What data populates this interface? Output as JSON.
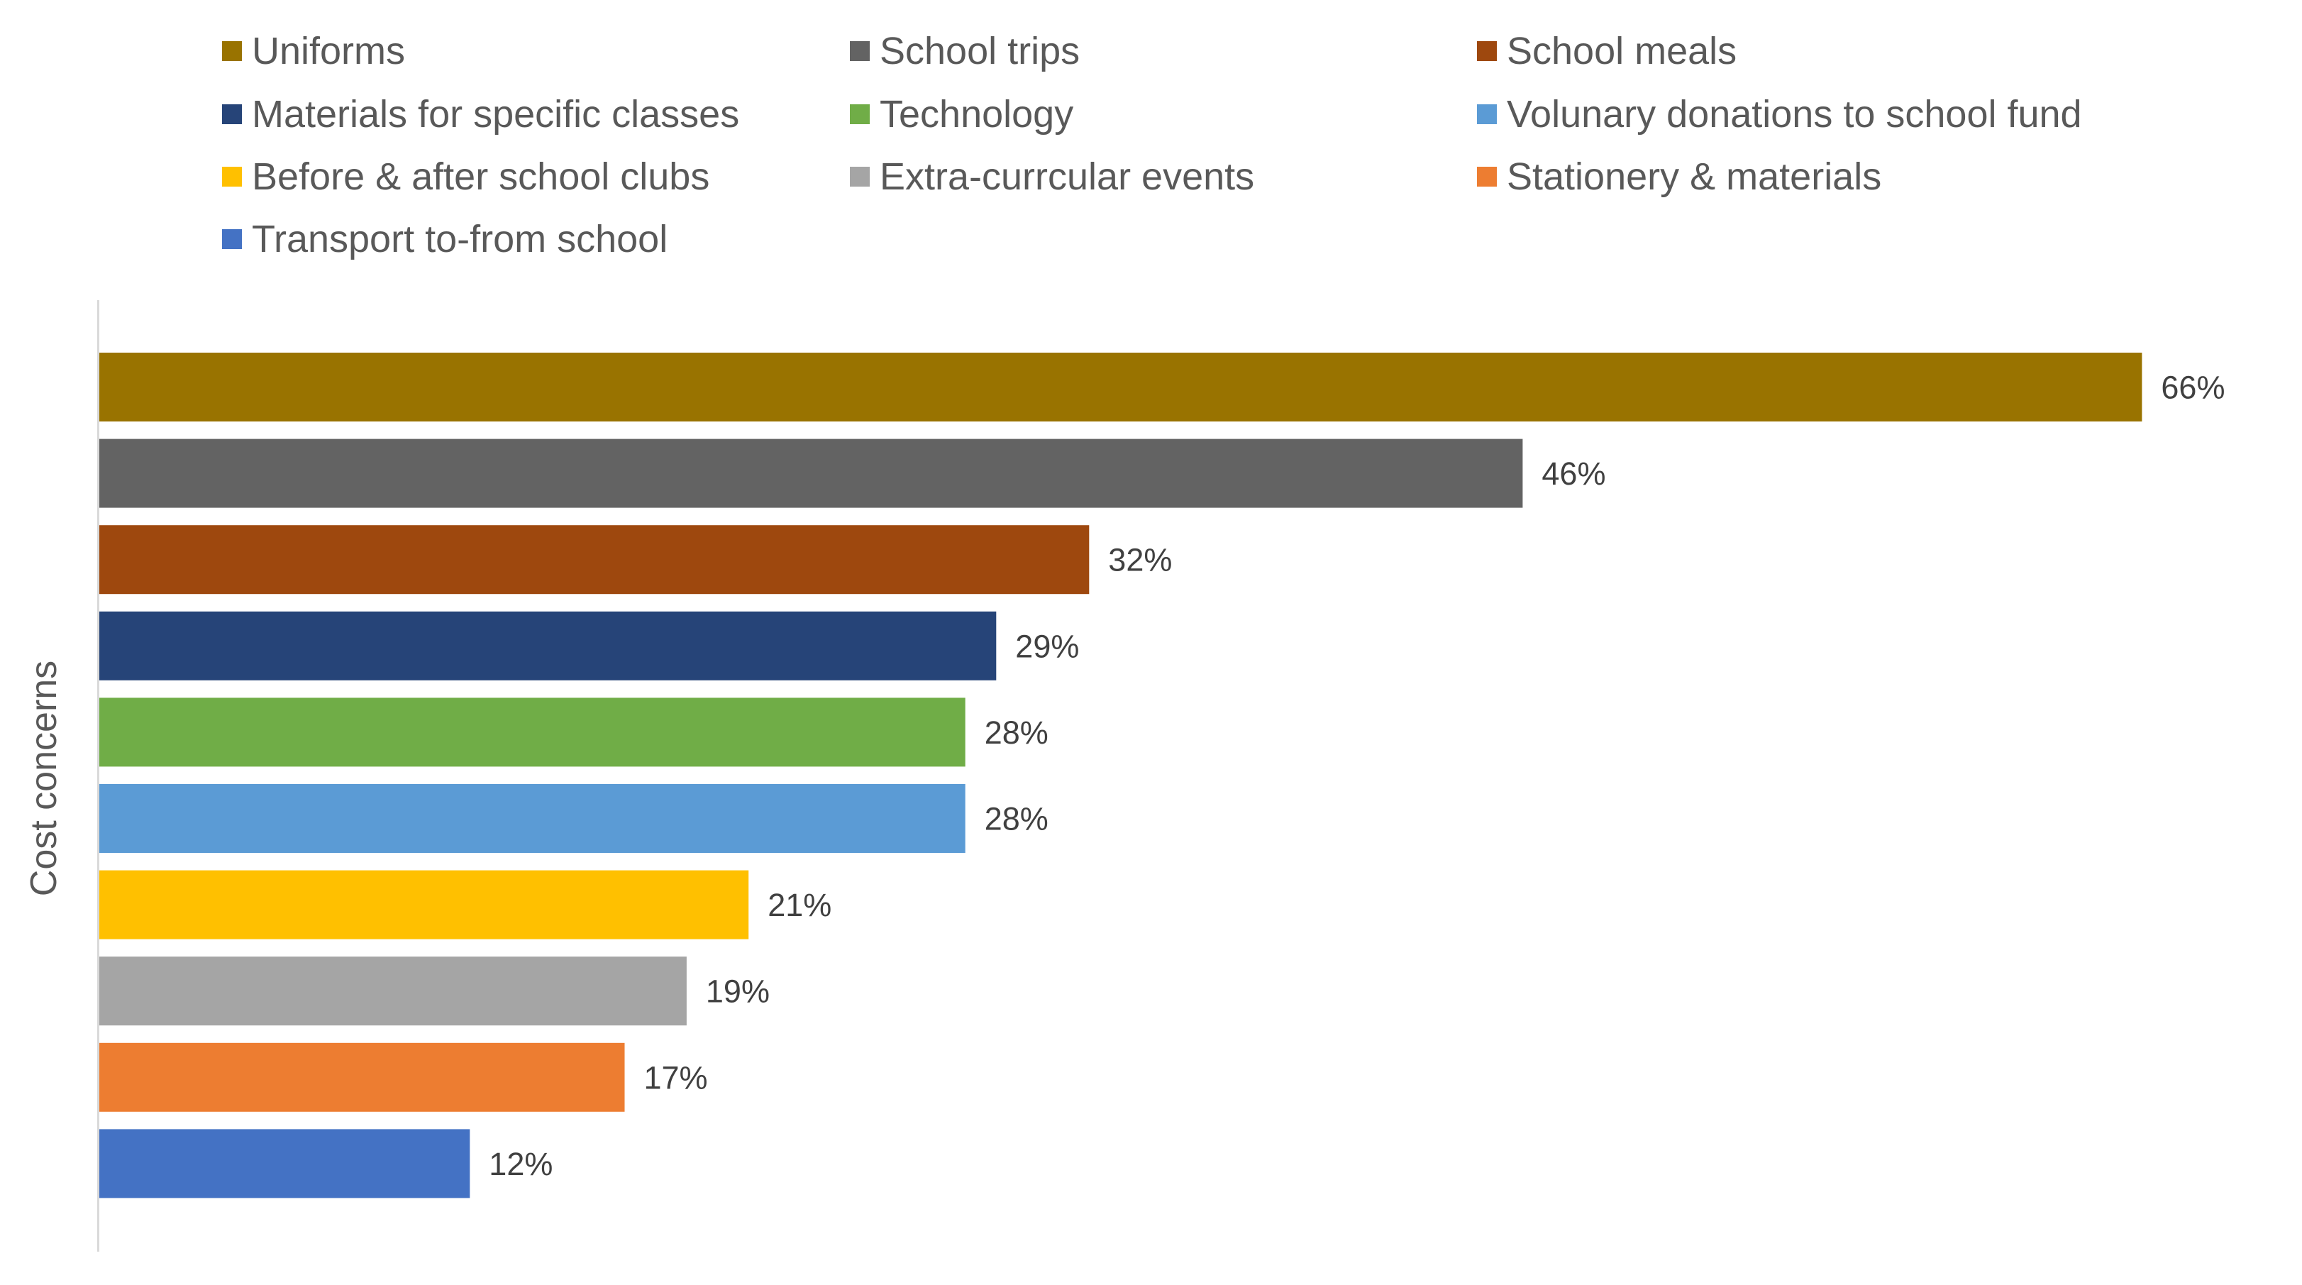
{
  "chart_data": {
    "type": "bar",
    "orientation": "horizontal",
    "title": "",
    "xlabel": "",
    "ylabel": "Cost concerns",
    "xlim": [
      0,
      66
    ],
    "grid": false,
    "legend_position": "top",
    "value_format": "percent",
    "categories": [
      "Uniforms",
      "School trips",
      "School meals",
      "Materials for specific classes",
      "Technology",
      "Volunary donations to school fund",
      "Before & after school clubs",
      "Extra-currcular events",
      "Stationery & materials",
      "Transport to-from school"
    ],
    "values": [
      66,
      46,
      32,
      29,
      28,
      28,
      21,
      19,
      17,
      12
    ],
    "data_labels": [
      "66%",
      "46%",
      "32%",
      "29%",
      "28%",
      "28%",
      "21%",
      "19%",
      "17%",
      "12%"
    ],
    "colors": [
      "#997300",
      "#636363",
      "#9E480E",
      "#264478",
      "#70AD47",
      "#5B9BD5",
      "#FFC000",
      "#A5A5A5",
      "#ED7D31",
      "#4472C4"
    ]
  }
}
